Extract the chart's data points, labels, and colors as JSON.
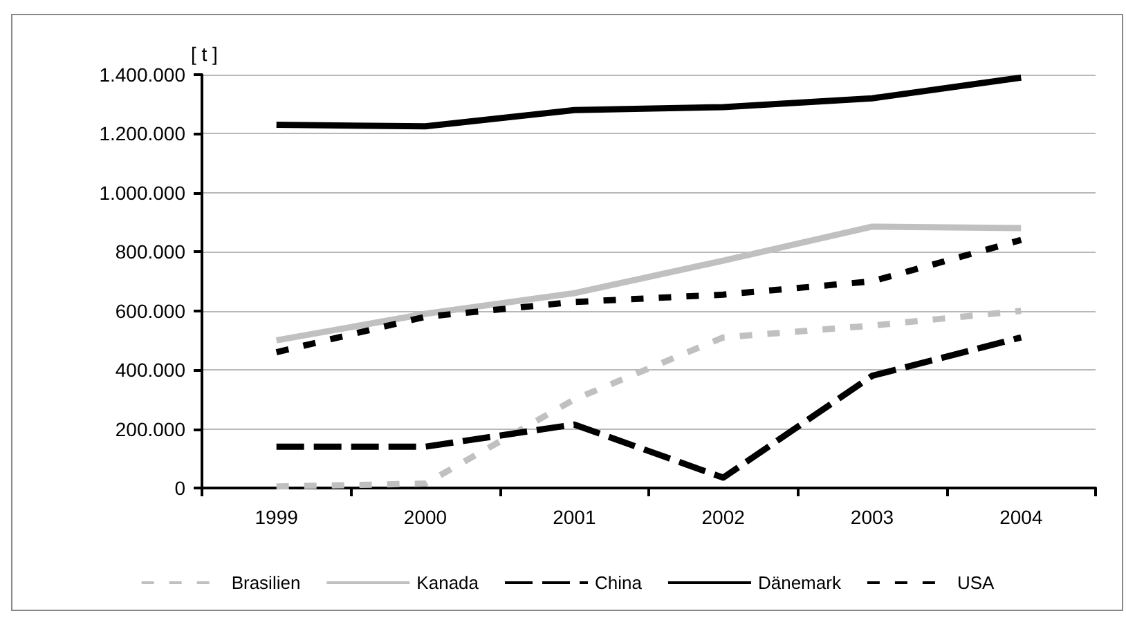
{
  "chart_data": {
    "type": "line",
    "ylabel": "[ t ]",
    "categories": [
      "1999",
      "2000",
      "2001",
      "2002",
      "2003",
      "2004"
    ],
    "series": [
      {
        "name": "Brasilien",
        "color": "#c0c0c0",
        "line_style": "dotted",
        "values": [
          5000,
          15000,
          300000,
          510000,
          550000,
          600000
        ]
      },
      {
        "name": "Kanada",
        "color": "#c0c0c0",
        "line_style": "solid",
        "values": [
          500000,
          590000,
          660000,
          770000,
          885000,
          880000
        ]
      },
      {
        "name": "China",
        "color": "#000000",
        "line_style": "dashed",
        "values": [
          140000,
          140000,
          215000,
          35000,
          380000,
          510000
        ]
      },
      {
        "name": "Dänemark",
        "color": "#000000",
        "line_style": "solid",
        "values": [
          1230000,
          1225000,
          1280000,
          1290000,
          1320000,
          1390000
        ]
      },
      {
        "name": "USA",
        "color": "#000000",
        "line_style": "dotted",
        "values": [
          460000,
          580000,
          630000,
          655000,
          700000,
          840000
        ]
      }
    ],
    "ylim": [
      0,
      1400000
    ],
    "yticks": [
      {
        "value": 0,
        "label": "0"
      },
      {
        "value": 200000,
        "label": "200.000"
      },
      {
        "value": 400000,
        "label": "400.000"
      },
      {
        "value": 600000,
        "label": "600.000"
      },
      {
        "value": 800000,
        "label": "800.000"
      },
      {
        "value": 1000000,
        "label": "1.000.000"
      },
      {
        "value": 1200000,
        "label": "1.200.000"
      },
      {
        "value": 1400000,
        "label": "1.400.000"
      }
    ],
    "grid": "y",
    "legend": "bottom",
    "marker": "none"
  }
}
